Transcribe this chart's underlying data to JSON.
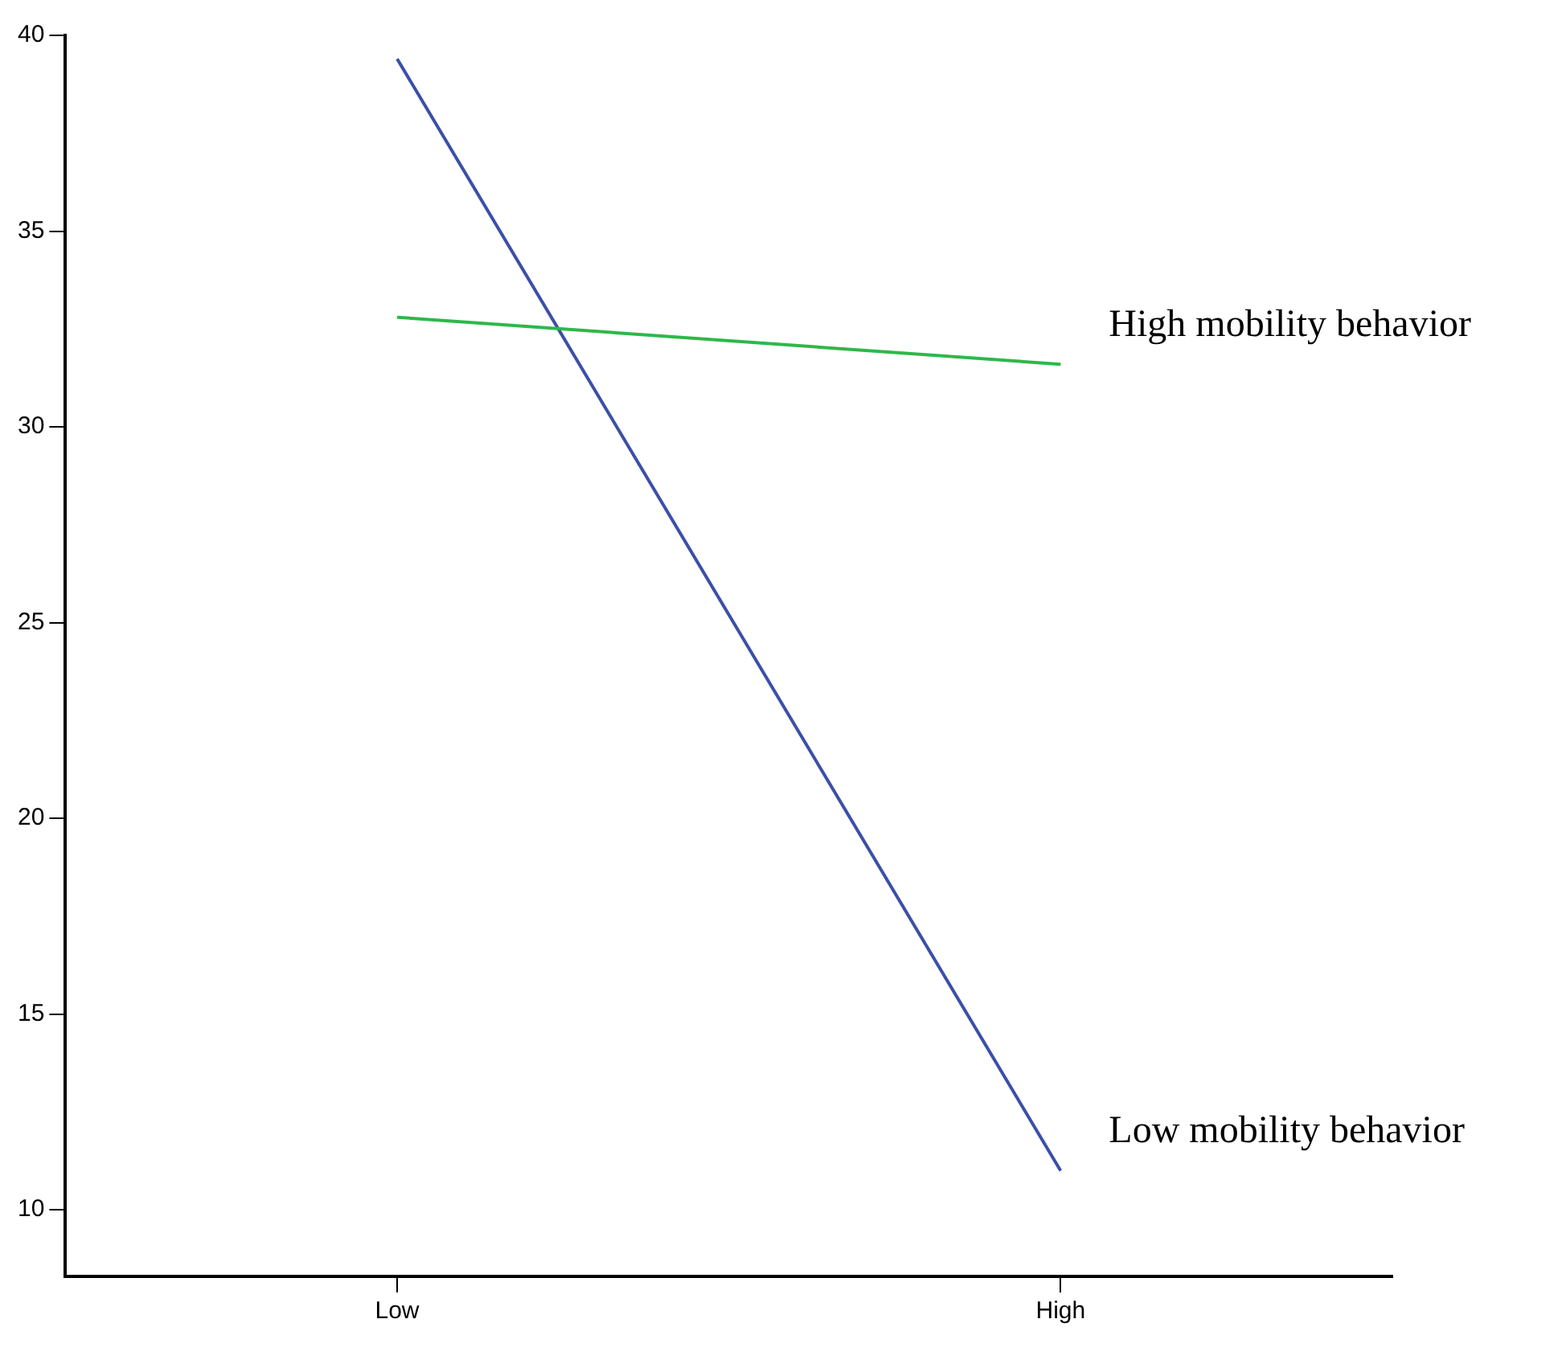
{
  "chart_data": {
    "type": "line",
    "categories": [
      "Low",
      "High"
    ],
    "series": [
      {
        "name": "High mobility behavior",
        "color": "#2db84a",
        "values": [
          32.8,
          31.6
        ]
      },
      {
        "name": "Low mobility behavior",
        "color": "#3c4fa8",
        "values": [
          39.4,
          11.0
        ]
      }
    ],
    "ylim": [
      8.3,
      40
    ],
    "yticks": [
      10,
      15,
      20,
      25,
      30,
      35,
      40
    ],
    "grid": false,
    "legend": false,
    "marker": "none"
  }
}
